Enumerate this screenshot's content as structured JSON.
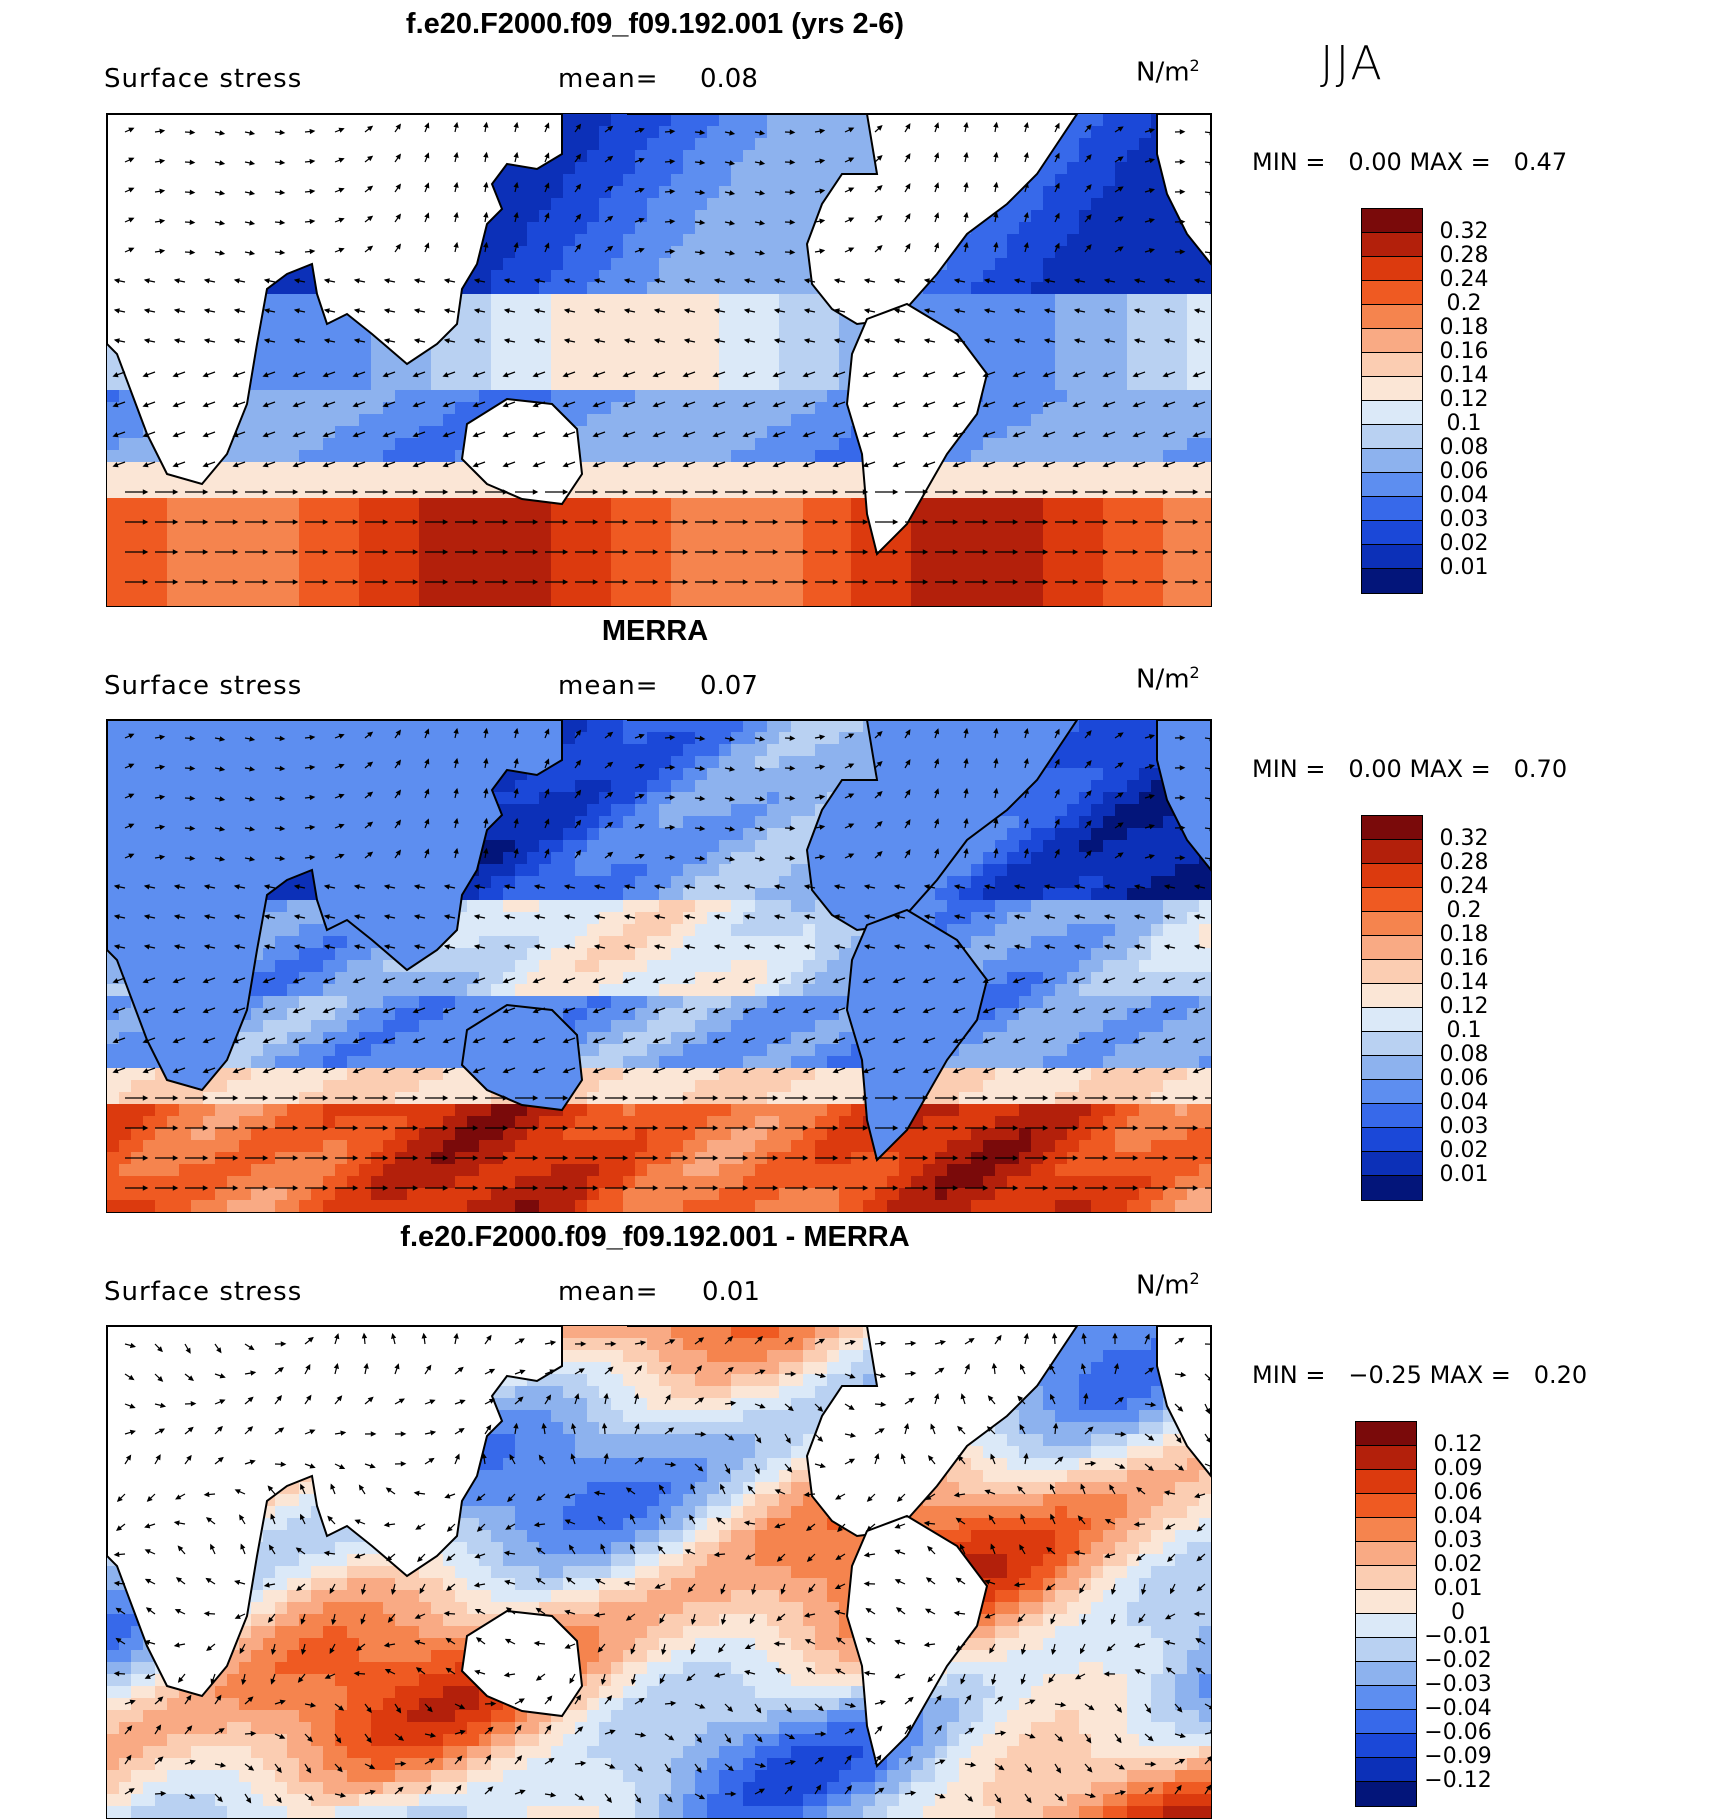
{
  "season": "JJA",
  "panels": [
    {
      "title": "f.e20.F2000.f09_f09.192.001 (yrs 2-6)",
      "variable": "Surface stress",
      "mean_label": "mean=",
      "mean_value": "0.08",
      "units": "N/m",
      "units_exp": "2",
      "min_label": "MIN =",
      "min_value": "0.00",
      "max_label": "MAX =",
      "max_value": "0.47",
      "colorbar": {
        "levels": [
          "0.32",
          "0.28",
          "0.24",
          "0.2",
          "0.18",
          "0.16",
          "0.14",
          "0.12",
          "0.1",
          "0.08",
          "0.06",
          "0.04",
          "0.03",
          "0.02",
          "0.01"
        ],
        "colors": [
          "#7a0a0a",
          "#b3200b",
          "#dc3a0e",
          "#ef5a22",
          "#f5844e",
          "#f9aa84",
          "#fbcdb2",
          "#fbe6d6",
          "#dbe9f8",
          "#b9d1f2",
          "#8db2ee",
          "#5d8ef0",
          "#3769ea",
          "#1b48d8",
          "#0c30b8",
          "#03157a"
        ]
      }
    },
    {
      "title": "MERRA",
      "variable": "Surface stress",
      "mean_label": "mean=",
      "mean_value": "0.07",
      "units": "N/m",
      "units_exp": "2",
      "min_label": "MIN =",
      "min_value": "0.00",
      "max_label": "MAX =",
      "max_value": "0.70",
      "colorbar": {
        "levels": [
          "0.32",
          "0.28",
          "0.24",
          "0.2",
          "0.18",
          "0.16",
          "0.14",
          "0.12",
          "0.1",
          "0.08",
          "0.06",
          "0.04",
          "0.03",
          "0.02",
          "0.01"
        ],
        "colors": [
          "#7a0a0a",
          "#b3200b",
          "#dc3a0e",
          "#ef5a22",
          "#f5844e",
          "#f9aa84",
          "#fbcdb2",
          "#fbe6d6",
          "#dbe9f8",
          "#b9d1f2",
          "#8db2ee",
          "#5d8ef0",
          "#3769ea",
          "#1b48d8",
          "#0c30b8",
          "#03157a"
        ]
      }
    },
    {
      "title": "f.e20.F2000.f09_f09.192.001 - MERRA",
      "variable": "Surface stress",
      "mean_label": "mean=",
      "mean_value": "0.01",
      "units": "N/m",
      "units_exp": "2",
      "min_label": "MIN =",
      "min_value": "−0.25",
      "max_label": "MAX =",
      "max_value": "0.20",
      "colorbar": {
        "levels": [
          "0.12",
          "0.09",
          "0.06",
          "0.04",
          "0.03",
          "0.02",
          "0.01",
          "0",
          "−0.01",
          "−0.02",
          "−0.03",
          "−0.04",
          "−0.06",
          "−0.09",
          "−0.12"
        ],
        "colors": [
          "#7a0a0a",
          "#b3200b",
          "#dc3a0e",
          "#ef5a22",
          "#f5844e",
          "#f9aa84",
          "#fbcdb2",
          "#fbe6d6",
          "#dbe9f8",
          "#b9d1f2",
          "#8db2ee",
          "#5d8ef0",
          "#3769ea",
          "#1b48d8",
          "#0c30b8",
          "#03157a"
        ]
      }
    }
  ]
}
